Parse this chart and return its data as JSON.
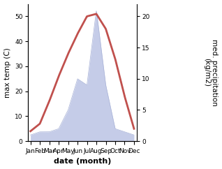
{
  "months": [
    "Jan",
    "Feb",
    "Mar",
    "Apr",
    "May",
    "Jun",
    "Jul",
    "Aug",
    "Sep",
    "Oct",
    "Nov",
    "Dec"
  ],
  "temperature": [
    4,
    7,
    16,
    26,
    35,
    43,
    50,
    51,
    45,
    33,
    18,
    5
  ],
  "precipitation": [
    1.0,
    1.5,
    1.5,
    2.0,
    5.0,
    10.0,
    9.0,
    21.0,
    9.0,
    2.0,
    1.5,
    1.0
  ],
  "temp_color": "#c0504d",
  "precip_fill_color": "#c5cce8",
  "precip_edge_color": "#aab4d8",
  "temp_ylim": [
    0,
    55
  ],
  "precip_ylim": [
    0,
    22
  ],
  "temp_yticks": [
    0,
    10,
    20,
    30,
    40,
    50
  ],
  "precip_yticks": [
    0,
    5,
    10,
    15,
    20
  ],
  "ylabel_left": "max temp (C)",
  "ylabel_right": "med. precipitation\n(kg/m2)",
  "xlabel": "date (month)",
  "label_fontsize": 7.5,
  "tick_fontsize": 6.5,
  "xlabel_fontsize": 8,
  "linewidth": 2.0
}
